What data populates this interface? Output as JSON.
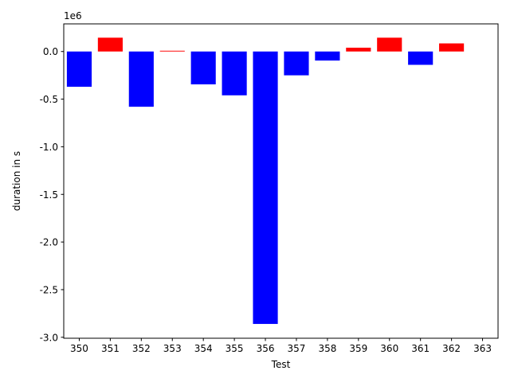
{
  "chart_data": {
    "type": "bar",
    "title": "",
    "xlabel": "Test",
    "ylabel": "duration in s",
    "offset_label": "1e6",
    "grid": false,
    "legend": "none",
    "colors": {
      "positive": "#ff0000",
      "negative": "#0000ff"
    },
    "ylim": [
      -3010000,
      290000
    ],
    "yticks": [
      {
        "value": 0,
        "label": "0.0"
      },
      {
        "value": -500000,
        "label": "-0.5"
      },
      {
        "value": -1000000,
        "label": "-1.0"
      },
      {
        "value": -1500000,
        "label": "-1.5"
      },
      {
        "value": -2000000,
        "label": "-2.0"
      },
      {
        "value": -2500000,
        "label": "-2.5"
      },
      {
        "value": -3000000,
        "label": "-3.0"
      }
    ],
    "categories": [
      "350",
      "351",
      "352",
      "353",
      "354",
      "355",
      "356",
      "357",
      "358",
      "359",
      "360",
      "361",
      "362",
      "363"
    ],
    "values": [
      -370000,
      145000,
      -580000,
      8000,
      -345000,
      -460000,
      -2860000,
      -250000,
      -95000,
      40000,
      145000,
      -140000,
      85000,
      0
    ]
  }
}
